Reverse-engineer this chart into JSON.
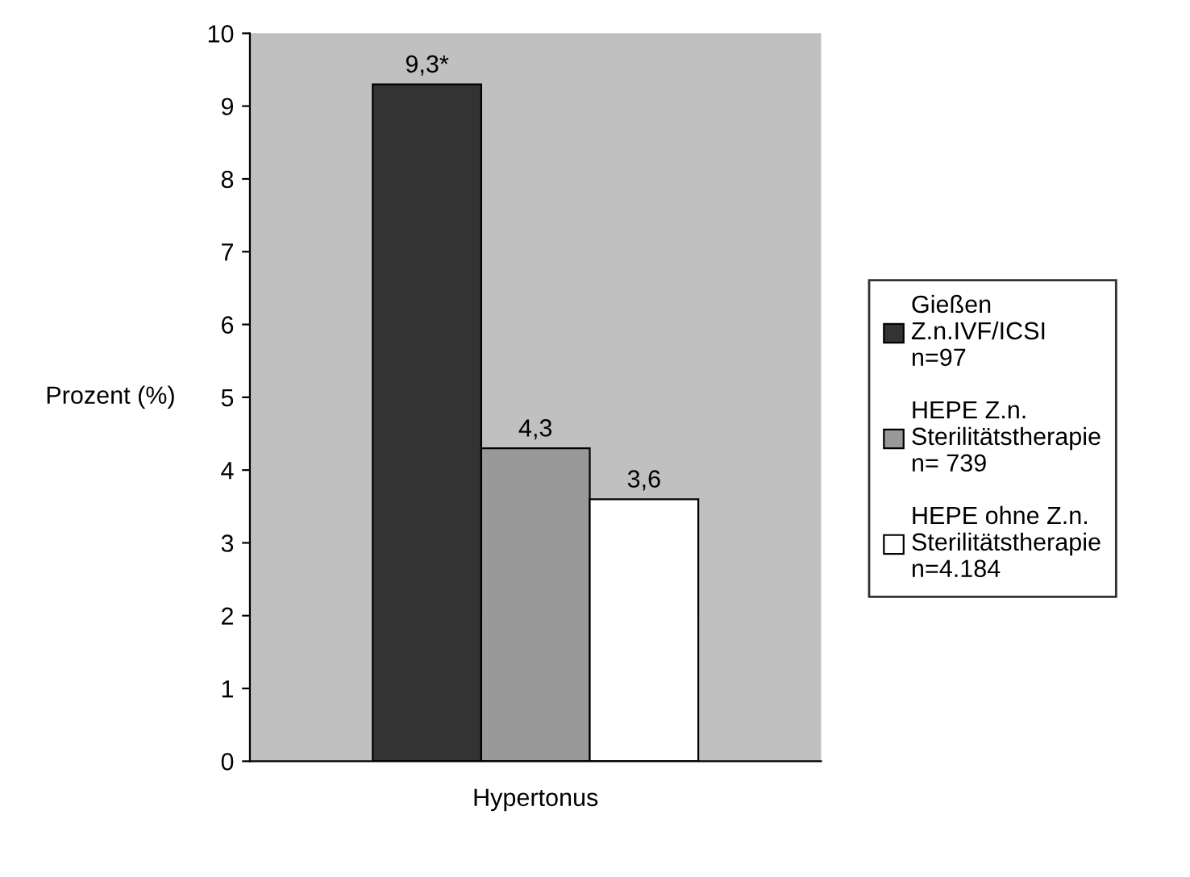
{
  "chart_data": {
    "type": "bar",
    "categories": [
      "Hypertonus"
    ],
    "ylabel": "Prozent (%)",
    "ylim": [
      0,
      10
    ],
    "yticks": [
      0,
      1,
      2,
      3,
      4,
      5,
      6,
      7,
      8,
      9,
      10
    ],
    "grid": false,
    "legend": "right",
    "series": [
      {
        "name": "Gießen\nZ.n.IVF/ICSI\nn=97",
        "color": "#333333",
        "values": [
          9.3
        ],
        "value_labels": [
          "9,3*"
        ]
      },
      {
        "name": "HEPE Z.n.\nSterilitätstherapie\nn= 739",
        "color": "#999999",
        "values": [
          4.3
        ],
        "value_labels": [
          "4,3"
        ]
      },
      {
        "name": "HEPE ohne Z.n.\nSterilitätstherapie\nn=4.184",
        "color": "#ffffff",
        "values": [
          3.6
        ],
        "value_labels": [
          "3,6"
        ]
      }
    ]
  }
}
